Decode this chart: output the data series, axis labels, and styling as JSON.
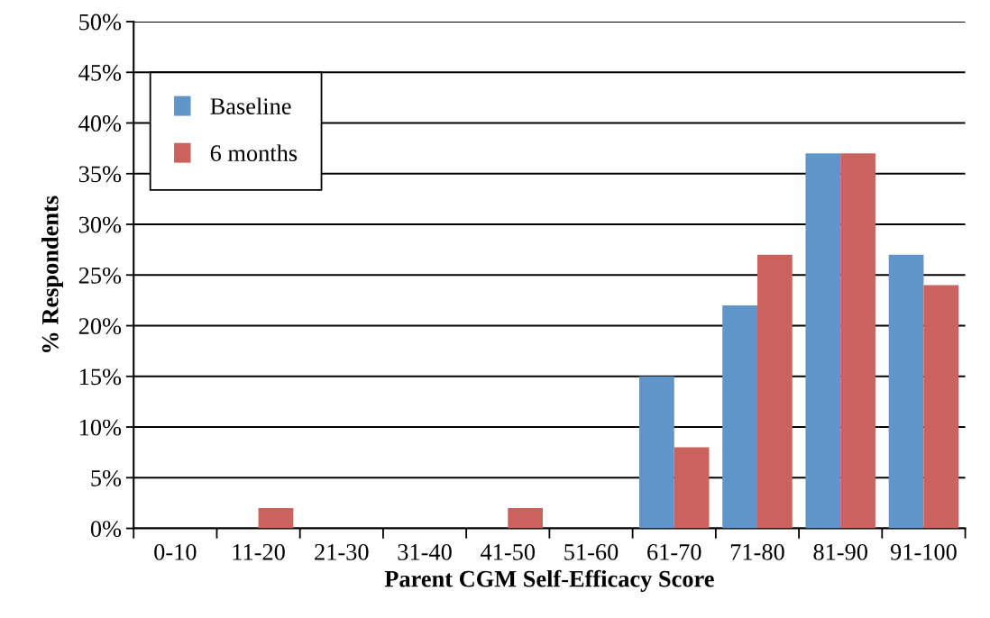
{
  "chart_data": {
    "type": "bar",
    "xlabel": "Parent CGM Self-Efficacy Score",
    "ylabel": "% Respondents",
    "categories": [
      "0-10",
      "11-20",
      "21-30",
      "31-40",
      "41-50",
      "51-60",
      "61-70",
      "71-80",
      "81-90",
      "91-100"
    ],
    "series": [
      {
        "name": "Baseline",
        "color": "#5f95c8",
        "values": [
          0,
          0,
          0,
          0,
          0,
          0,
          15,
          22,
          37,
          27
        ]
      },
      {
        "name": "6 months",
        "color": "#ca635d",
        "values": [
          0,
          2,
          0,
          0,
          2,
          0,
          8,
          27,
          37,
          24
        ]
      }
    ],
    "ylim": [
      0,
      50
    ],
    "yticks": [
      {
        "value": 0,
        "label": "0%"
      },
      {
        "value": 5,
        "label": "5%"
      },
      {
        "value": 10,
        "label": "10%"
      },
      {
        "value": 15,
        "label": "15%"
      },
      {
        "value": 20,
        "label": "20%"
      },
      {
        "value": 25,
        "label": "25%"
      },
      {
        "value": 30,
        "label": "30%"
      },
      {
        "value": 35,
        "label": "35%"
      },
      {
        "value": 40,
        "label": "40%"
      },
      {
        "value": 45,
        "label": "45%"
      },
      {
        "value": 50,
        "label": "50%"
      }
    ],
    "grid": "y",
    "legend": "top left"
  }
}
